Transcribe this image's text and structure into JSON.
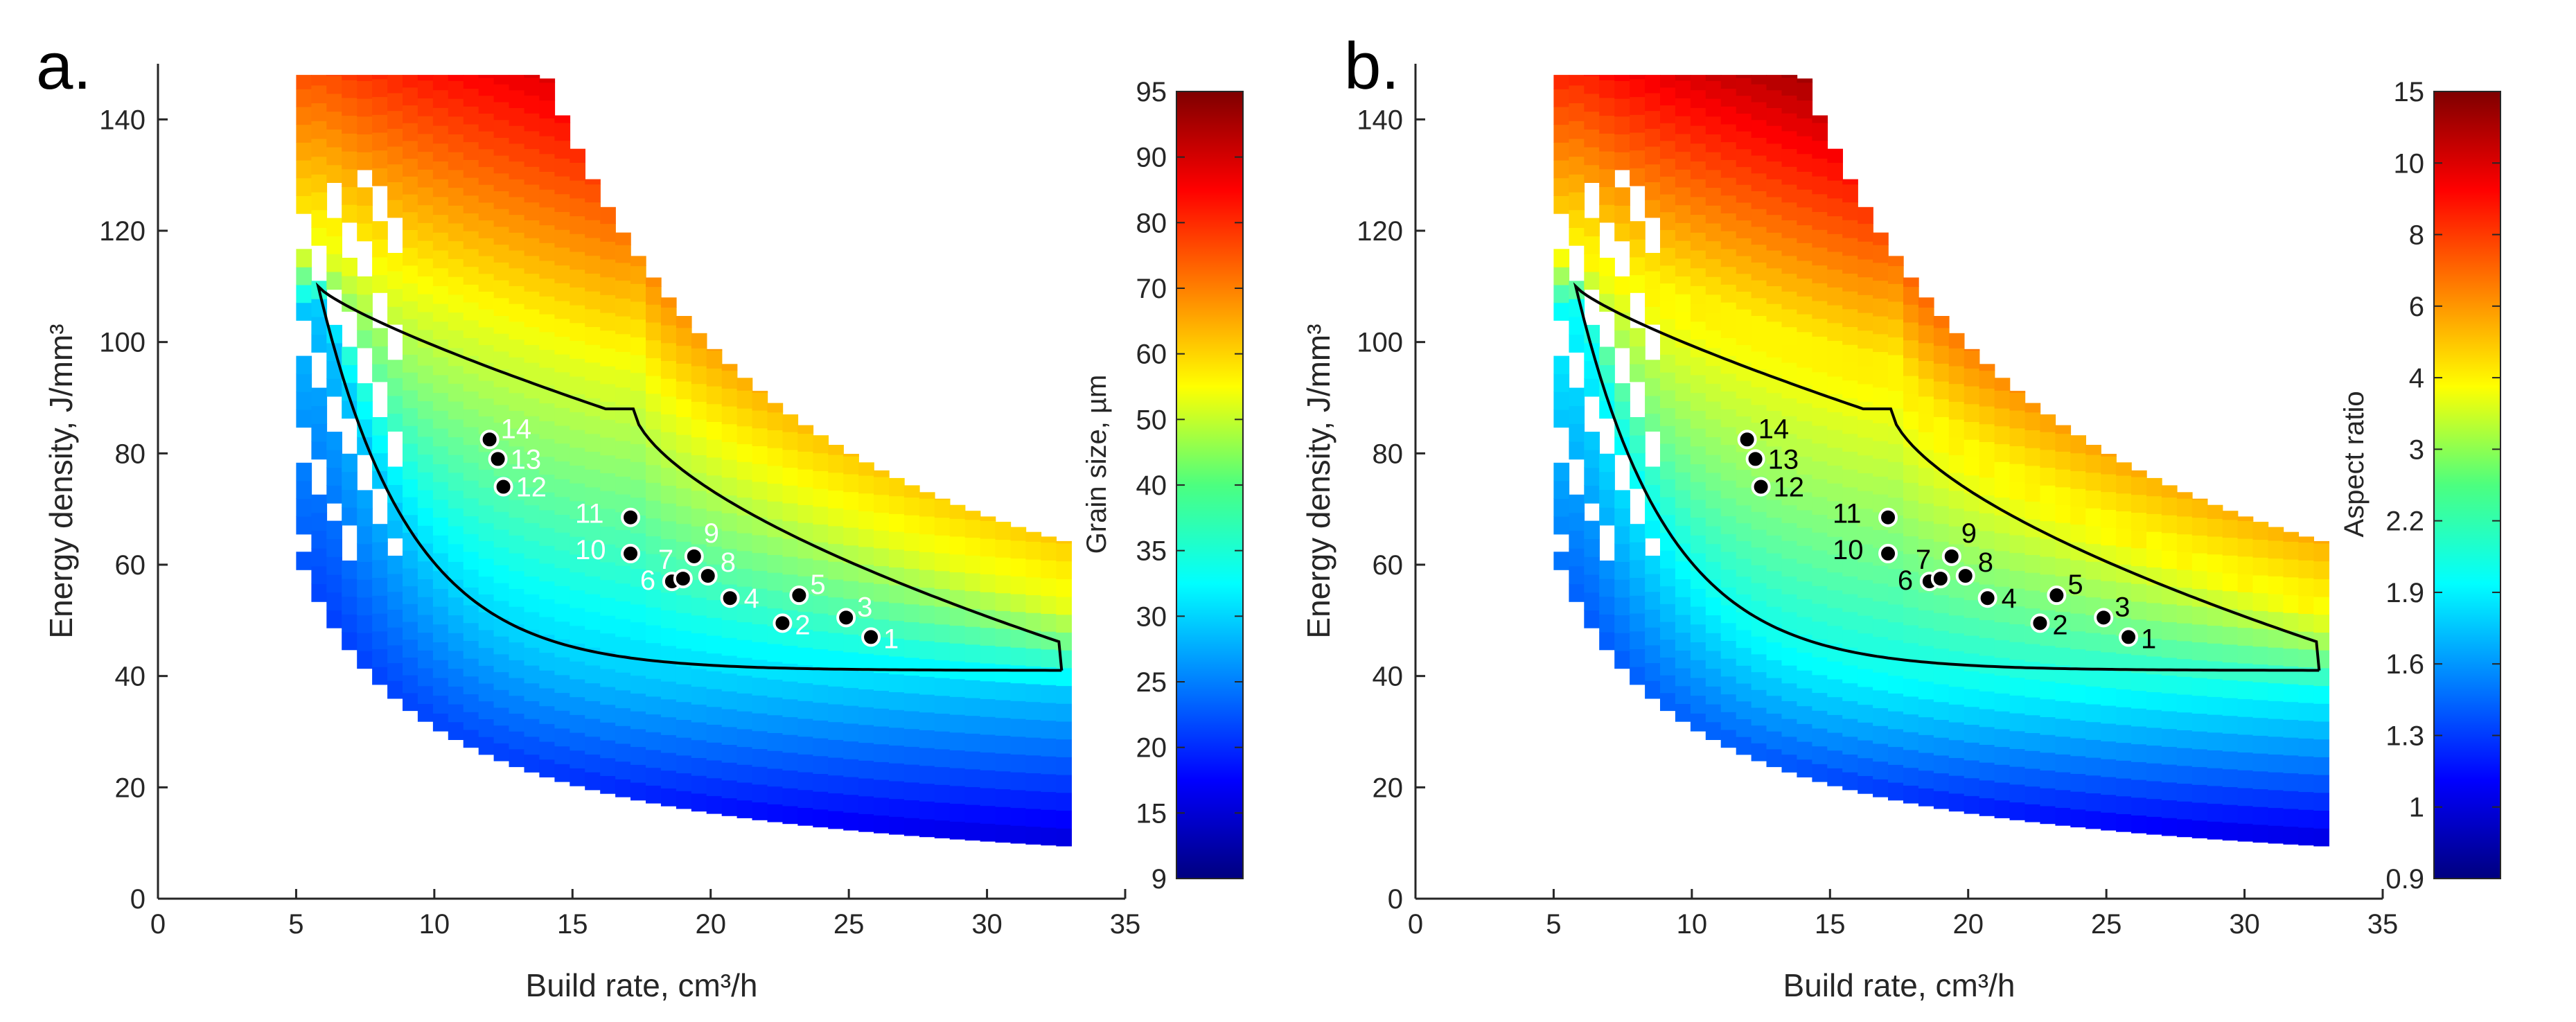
{
  "chart_data": [
    {
      "type": "heatmap",
      "panel_label": "a.",
      "xlabel": "Build rate, cm³/h",
      "ylabel": "Energy density, J/mm³",
      "xlim": [
        0,
        35
      ],
      "ylim": [
        0,
        150
      ],
      "x_ticks": [
        0,
        5,
        10,
        15,
        20,
        25,
        30,
        35
      ],
      "y_ticks": [
        0,
        20,
        40,
        60,
        80,
        100,
        120,
        140
      ],
      "colorbar": {
        "label": "Grain size, µm",
        "ticks": [
          "9",
          "15",
          "20",
          "25",
          "30",
          "35",
          "40",
          "50",
          "60",
          "70",
          "80",
          "90",
          "95"
        ]
      },
      "label_color": "#ffffff",
      "points": [
        {
          "label": "1",
          "x": 25.8,
          "y": 47.0
        },
        {
          "label": "2",
          "x": 22.6,
          "y": 49.5
        },
        {
          "label": "3",
          "x": 24.9,
          "y": 50.5
        },
        {
          "label": "4",
          "x": 20.7,
          "y": 54.0
        },
        {
          "label": "5",
          "x": 23.2,
          "y": 54.5
        },
        {
          "label": "6",
          "x": 18.6,
          "y": 57.0
        },
        {
          "label": "7",
          "x": 19.0,
          "y": 57.5
        },
        {
          "label": "8",
          "x": 19.9,
          "y": 58.0
        },
        {
          "label": "9",
          "x": 19.4,
          "y": 61.5
        },
        {
          "label": "10",
          "x": 17.1,
          "y": 62.0
        },
        {
          "label": "11",
          "x": 17.1,
          "y": 68.5
        },
        {
          "label": "12",
          "x": 12.5,
          "y": 74.0
        },
        {
          "label": "13",
          "x": 12.3,
          "y": 79.0
        },
        {
          "label": "14",
          "x": 12.0,
          "y": 82.5
        }
      ]
    },
    {
      "type": "heatmap",
      "panel_label": "b.",
      "xlabel": "Build rate, cm³/h",
      "ylabel": "Energy density, J/mm³",
      "xlim": [
        0,
        35
      ],
      "ylim": [
        0,
        150
      ],
      "x_ticks": [
        0,
        5,
        10,
        15,
        20,
        25,
        30,
        35
      ],
      "y_ticks": [
        0,
        20,
        40,
        60,
        80,
        100,
        120,
        140
      ],
      "colorbar": {
        "label": "Aspect ratio",
        "ticks": [
          "0.9",
          "1",
          "1.3",
          "1.6",
          "1.9",
          "2.2",
          "3",
          "4",
          "6",
          "8",
          "10",
          "15"
        ]
      },
      "label_color": "#000000",
      "points": [
        {
          "label": "1",
          "x": 25.8,
          "y": 47.0
        },
        {
          "label": "2",
          "x": 22.6,
          "y": 49.5
        },
        {
          "label": "3",
          "x": 24.9,
          "y": 50.5
        },
        {
          "label": "4",
          "x": 20.7,
          "y": 54.0
        },
        {
          "label": "5",
          "x": 23.2,
          "y": 54.5
        },
        {
          "label": "6",
          "x": 18.6,
          "y": 57.0
        },
        {
          "label": "7",
          "x": 19.0,
          "y": 57.5
        },
        {
          "label": "8",
          "x": 19.9,
          "y": 58.0
        },
        {
          "label": "9",
          "x": 19.4,
          "y": 61.5
        },
        {
          "label": "10",
          "x": 17.1,
          "y": 62.0
        },
        {
          "label": "11",
          "x": 17.1,
          "y": 68.5
        },
        {
          "label": "12",
          "x": 12.5,
          "y": 74.0
        },
        {
          "label": "13",
          "x": 12.3,
          "y": 79.0
        },
        {
          "label": "14",
          "x": 12.0,
          "y": 82.5
        }
      ]
    }
  ]
}
